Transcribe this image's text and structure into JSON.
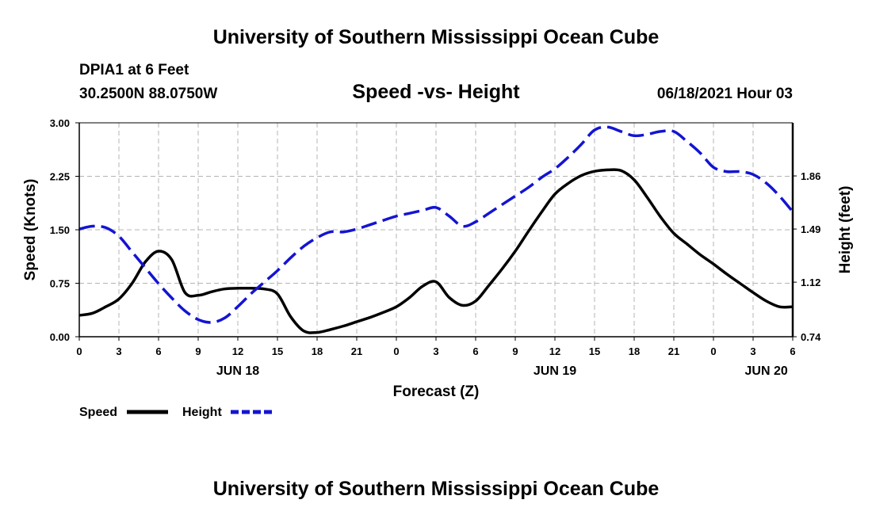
{
  "header": {
    "title": "University of Southern Mississippi Ocean Cube",
    "station": "DPIA1 at 6 Feet",
    "coords": "30.2500N  88.0750W",
    "chart_title": "Speed -vs- Height",
    "datetime": "06/18/2021 Hour 03"
  },
  "footer": {
    "title": "University of Southern Mississippi Ocean Cube"
  },
  "colors": {
    "speed": "#000000",
    "height": "#1414d2",
    "grid": "#b4b4b4"
  },
  "chart_data": {
    "type": "line",
    "title": "Speed -vs- Height",
    "xlabel": "Forecast (Z)",
    "ylabel": "Speed (Knots)",
    "y2label": "Height (feet)",
    "x_range": [
      0,
      54
    ],
    "x_tick_positions": [
      0,
      3,
      6,
      9,
      12,
      15,
      18,
      21,
      24,
      27,
      30,
      33,
      36,
      39,
      42,
      45,
      48,
      51,
      54
    ],
    "x_tick_labels": [
      "0",
      "3",
      "6",
      "9",
      "12",
      "15",
      "18",
      "21",
      "0",
      "3",
      "6",
      "9",
      "12",
      "15",
      "18",
      "21",
      "0",
      "3",
      "6"
    ],
    "date_labels": [
      {
        "hour": 12,
        "label": "JUN 18"
      },
      {
        "hour": 36,
        "label": "JUN 19"
      },
      {
        "hour": 52,
        "label": "JUN 20"
      }
    ],
    "ylim": [
      0,
      3
    ],
    "y_ticks": [
      "0.00",
      "0.75",
      "1.50",
      "2.25",
      "3.00"
    ],
    "y2lim": [
      0.74,
      2.23
    ],
    "y2_ticks": [
      "0.74",
      "1.12",
      "1.49",
      "1.86"
    ],
    "y2_tick_values": [
      0.74,
      1.12,
      1.49,
      1.86
    ],
    "grid": true,
    "legend_position": "bottom-left",
    "series": [
      {
        "name": "Speed",
        "axis": "left",
        "style": "solid",
        "x": [
          0,
          1,
          2,
          3,
          4,
          5,
          6,
          7,
          8,
          9,
          10,
          11,
          12,
          13,
          14,
          15,
          16,
          17,
          18,
          19,
          20,
          21,
          22,
          23,
          24,
          25,
          26,
          27,
          28,
          29,
          30,
          31,
          32,
          33,
          34,
          35,
          36,
          37,
          38,
          39,
          40,
          41,
          42,
          43,
          44,
          45,
          46,
          47,
          48,
          49,
          50,
          51,
          52,
          53,
          54
        ],
        "values": [
          0.3,
          0.33,
          0.42,
          0.53,
          0.75,
          1.05,
          1.2,
          1.08,
          0.62,
          0.58,
          0.63,
          0.67,
          0.68,
          0.68,
          0.67,
          0.6,
          0.28,
          0.08,
          0.06,
          0.1,
          0.15,
          0.21,
          0.27,
          0.34,
          0.42,
          0.55,
          0.71,
          0.77,
          0.55,
          0.44,
          0.5,
          0.72,
          0.95,
          1.2,
          1.48,
          1.75,
          2.0,
          2.15,
          2.26,
          2.32,
          2.34,
          2.33,
          2.2,
          1.95,
          1.68,
          1.45,
          1.3,
          1.15,
          1.02,
          0.88,
          0.75,
          0.62,
          0.5,
          0.42,
          0.42
        ]
      },
      {
        "name": "Height",
        "axis": "right",
        "style": "dashed",
        "x": [
          0,
          1,
          2,
          3,
          4,
          5,
          6,
          7,
          8,
          9,
          10,
          11,
          12,
          13,
          14,
          15,
          16,
          17,
          18,
          19,
          20,
          21,
          22,
          23,
          24,
          25,
          26,
          27,
          28,
          29,
          30,
          31,
          32,
          33,
          34,
          35,
          36,
          37,
          38,
          39,
          40,
          41,
          42,
          43,
          44,
          45,
          46,
          47,
          48,
          49,
          50,
          51,
          52,
          53,
          54
        ],
        "values": [
          1.49,
          1.51,
          1.5,
          1.44,
          1.33,
          1.22,
          1.11,
          1.01,
          0.92,
          0.86,
          0.84,
          0.87,
          0.95,
          1.04,
          1.12,
          1.2,
          1.29,
          1.37,
          1.43,
          1.47,
          1.47,
          1.49,
          1.52,
          1.55,
          1.58,
          1.6,
          1.62,
          1.64,
          1.58,
          1.51,
          1.54,
          1.6,
          1.66,
          1.72,
          1.78,
          1.85,
          1.91,
          1.99,
          2.08,
          2.18,
          2.2,
          2.17,
          2.14,
          2.15,
          2.17,
          2.17,
          2.1,
          2.02,
          1.92,
          1.89,
          1.89,
          1.87,
          1.81,
          1.72,
          1.61
        ]
      }
    ]
  }
}
